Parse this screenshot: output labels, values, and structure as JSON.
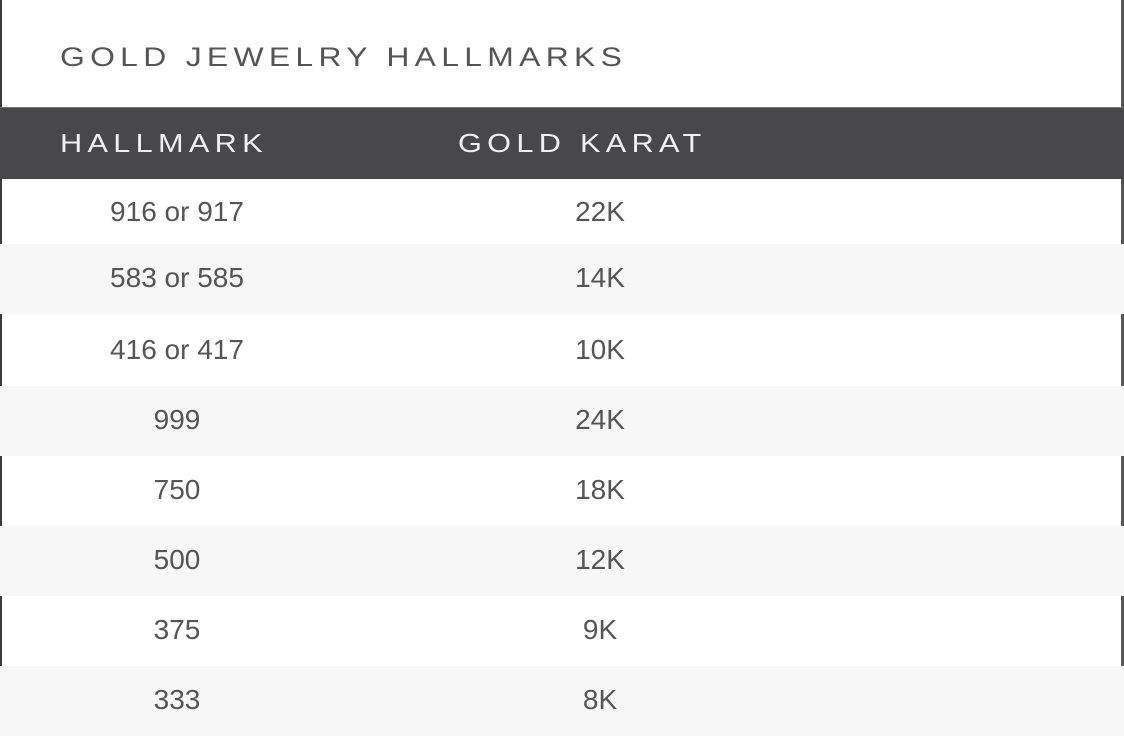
{
  "title": "GOLD JEWELRY HALLMARKS",
  "columns": [
    "HALLMARK",
    "GOLD KARAT"
  ],
  "rows": [
    [
      "916 or 917",
      "22K"
    ],
    [
      "583 or 585",
      "14K"
    ],
    [
      "416 or 417",
      "10K"
    ],
    [
      "999",
      "24K"
    ],
    [
      "750",
      "18K"
    ],
    [
      "500",
      "12K"
    ],
    [
      "375",
      "9K"
    ],
    [
      "333",
      "8K"
    ]
  ],
  "colors": {
    "header_bg": "#48484b",
    "row_alt": "#f7f7f7",
    "text": "#555555"
  }
}
